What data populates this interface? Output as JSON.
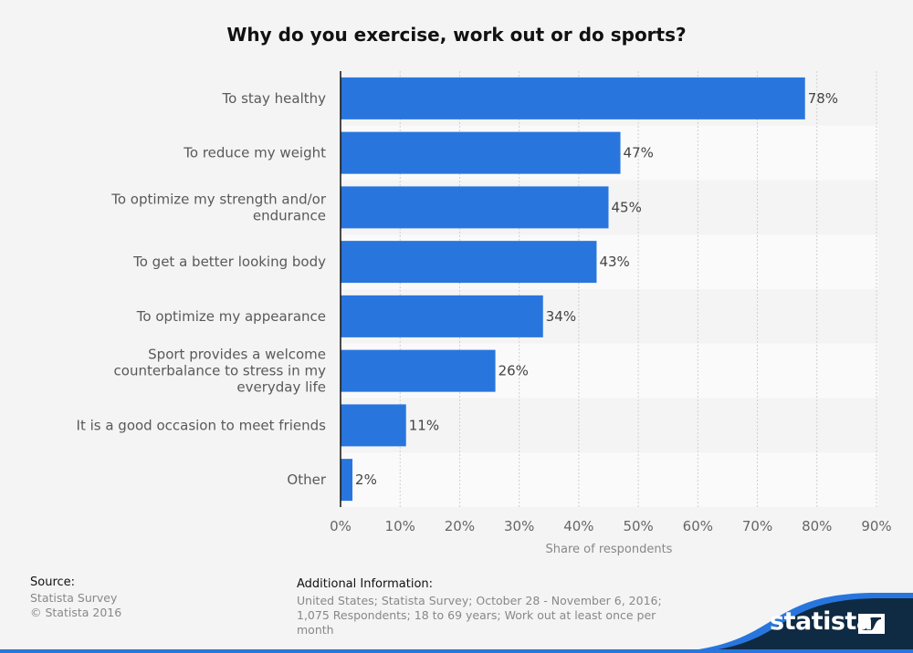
{
  "chart_data": {
    "type": "bar",
    "orientation": "horizontal",
    "title": "Why do you exercise, work out or do sports?",
    "categories": [
      [
        "To stay healthy"
      ],
      [
        "To reduce my weight"
      ],
      [
        "To optimize my strength and/or",
        "endurance"
      ],
      [
        "To get a better looking body"
      ],
      [
        "To optimize my appearance"
      ],
      [
        "Sport provides a welcome",
        "counterbalance to stress in my",
        "everyday life"
      ],
      [
        "It is a good occasion to meet friends"
      ],
      [
        "Other"
      ]
    ],
    "values": [
      78,
      47,
      45,
      43,
      34,
      26,
      11,
      2
    ],
    "value_labels": [
      "78%",
      "47%",
      "45%",
      "43%",
      "34%",
      "26%",
      "11%",
      "2%"
    ],
    "xlabel": "Share of respondents",
    "ylabel": "",
    "xlim": [
      0,
      90
    ],
    "xticks": [
      0,
      10,
      20,
      30,
      40,
      50,
      60,
      70,
      80,
      90
    ],
    "xtick_labels": [
      "0%",
      "10%",
      "20%",
      "30%",
      "40%",
      "50%",
      "60%",
      "70%",
      "80%",
      "90%"
    ],
    "grid": true,
    "bar_color": "#2876dd"
  },
  "footer": {
    "source_heading": "Source:",
    "source_lines": [
      "Statista Survey",
      "© Statista 2016"
    ],
    "additional_heading": "Additional Information:",
    "additional_text": "United States; Statista Survey; October 28 - November 6, 2016; 1,075 Respondents; 18 to 69 years; Work out at least once per month"
  },
  "brand": {
    "logo_text": "statista",
    "logo_icon": "statista-logo-icon",
    "dark_color": "#0f2a43",
    "accent_color": "#2876dd"
  }
}
